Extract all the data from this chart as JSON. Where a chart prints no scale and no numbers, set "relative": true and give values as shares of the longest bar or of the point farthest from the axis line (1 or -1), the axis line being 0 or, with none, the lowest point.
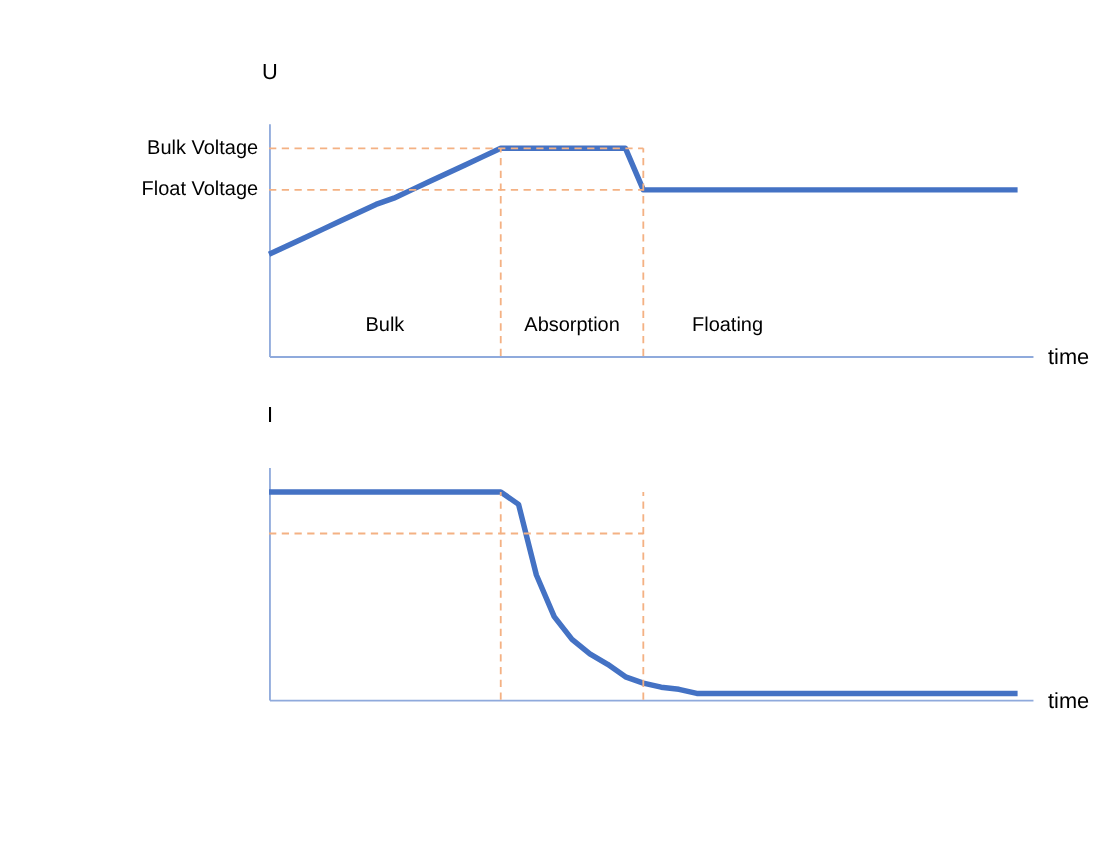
{
  "chart_data": [
    {
      "type": "line",
      "ylabel": "U",
      "xlabel": "time",
      "relative": true,
      "line_style": "solid",
      "categories": [
        null,
        null,
        null,
        null,
        null,
        null,
        null,
        null,
        null,
        null,
        null,
        null,
        null,
        null,
        null,
        null,
        null,
        null,
        null,
        null,
        null,
        null,
        null,
        null,
        null,
        null,
        null,
        null,
        null,
        null,
        null,
        null,
        null,
        null,
        null,
        null,
        null,
        null,
        null,
        null,
        null,
        null,
        null
      ],
      "series": [
        {
          "color": "#4472c4",
          "values": [
            0.49,
            0.53,
            0.57,
            0.61,
            0.65,
            0.69,
            0.73,
            0.76,
            0.8,
            0.84,
            0.88,
            0.92,
            0.96,
            1,
            1,
            1,
            1,
            1,
            1,
            1,
            1,
            0.8,
            0.8,
            0.8,
            0.8,
            0.8,
            0.8,
            0.8,
            0.8,
            0.8,
            0.8,
            0.8,
            0.8,
            0.8,
            0.8,
            0.8,
            0.8,
            0.8,
            0.8,
            0.8,
            0.8,
            0.8,
            0.8
          ]
        }
      ],
      "ref_lines": [
        {
          "axis": "y",
          "value": 1,
          "label": "Bulk Voltage",
          "color": "#f4b183",
          "line_style": "dashed"
        },
        {
          "axis": "y",
          "value": 0.8,
          "label": "Float Voltage",
          "color": "#f4b183",
          "line_style": "dashed"
        }
      ],
      "annotations": [
        "Bulk",
        "Absorption",
        "Floating"
      ]
    },
    {
      "type": "line",
      "ylabel": "I",
      "xlabel": "time",
      "relative": true,
      "line_style": "solid",
      "categories": [
        null,
        null,
        null,
        null,
        null,
        null,
        null,
        null,
        null,
        null,
        null,
        null,
        null,
        null,
        null,
        null,
        null,
        null,
        null,
        null,
        null,
        null,
        null,
        null,
        null,
        null,
        null,
        null,
        null,
        null,
        null,
        null,
        null,
        null,
        null,
        null,
        null,
        null,
        null,
        null,
        null,
        null,
        null
      ],
      "series": [
        {
          "color": "#4472c4",
          "values": [
            1,
            1,
            1,
            1,
            1,
            1,
            1,
            1,
            1,
            1,
            1,
            1,
            1,
            1,
            0.94,
            0.6,
            0.4,
            0.29,
            0.22,
            0.17,
            0.11,
            0.08,
            0.06,
            0.05,
            0.03,
            0.03,
            0.03,
            0.03,
            0.03,
            0.03,
            0.03,
            0.03,
            0.03,
            0.03,
            0.03,
            0.03,
            0.03,
            0.03,
            0.03,
            0.03,
            0.03,
            0.03,
            0.03
          ]
        }
      ],
      "ref_lines": [
        {
          "axis": "y",
          "value": 0.8,
          "label": null,
          "color": "#f4b183",
          "line_style": "dashed"
        }
      ]
    }
  ]
}
